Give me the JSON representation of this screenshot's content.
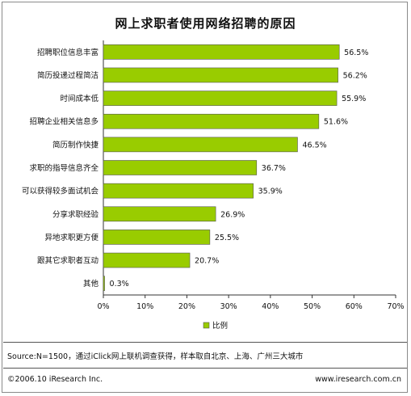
{
  "title": "网上求职者使用网络招聘的原因",
  "chart_data": {
    "type": "bar",
    "orientation": "horizontal",
    "categories": [
      "招聘职位信息丰富",
      "简历投递过程简洁",
      "时间成本低",
      "招聘企业相关信息多",
      "简历制作快捷",
      "求职的指导信息齐全",
      "可以获得较多面试机会",
      "分享求职经验",
      "异地求职更方便",
      "跟其它求职者互动",
      "其他"
    ],
    "values": [
      56.5,
      56.2,
      55.9,
      51.6,
      46.5,
      36.7,
      35.9,
      26.9,
      25.5,
      20.7,
      0.3
    ],
    "value_labels": [
      "56.5%",
      "56.2%",
      "55.9%",
      "51.6%",
      "46.5%",
      "36.7%",
      "35.9%",
      "26.9%",
      "25.5%",
      "20.7%",
      "0.3%"
    ],
    "xlim": [
      0,
      70
    ],
    "xticks": [
      "0%",
      "10%",
      "20%",
      "30%",
      "40%",
      "50%",
      "60%",
      "70%"
    ],
    "grid": false,
    "legend": {
      "label": "比例",
      "position": "bottom"
    },
    "colors": {
      "bar": "#99cc00",
      "bar_border": "#555555",
      "axis": "#333333"
    }
  },
  "source": "Source:N=1500，通过iClick网上联机调查获得，样本取自北京、上海、广州三大城市",
  "copyright": "©2006.10 iResearch Inc.",
  "website": "www.iresearch.com.cn"
}
